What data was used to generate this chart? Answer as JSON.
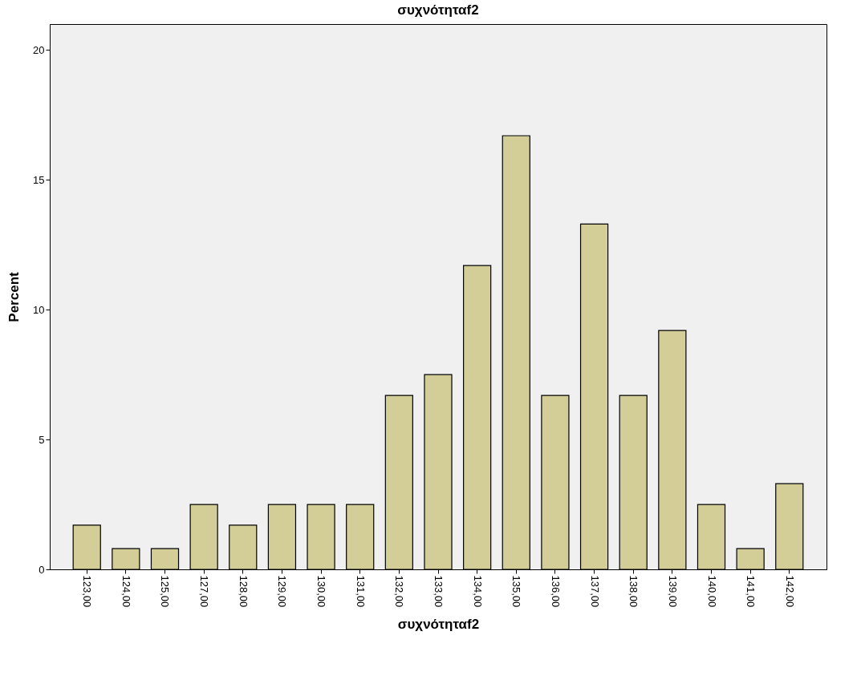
{
  "chart_data": {
    "type": "bar",
    "title": "συχνότηταf2",
    "xlabel": "συχνότηταf2",
    "ylabel": "Percent",
    "categories": [
      "123,00",
      "124,00",
      "125,00",
      "127,00",
      "128,00",
      "129,00",
      "130,00",
      "131,00",
      "132,00",
      "133,00",
      "134,00",
      "135,00",
      "136,00",
      "137,00",
      "138,00",
      "139,00",
      "140,00",
      "141,00",
      "142,00"
    ],
    "values": [
      1.7,
      0.8,
      0.8,
      2.5,
      1.7,
      2.5,
      2.5,
      2.5,
      6.7,
      7.5,
      11.7,
      16.7,
      6.7,
      13.3,
      6.7,
      9.2,
      2.5,
      0.8,
      3.3
    ],
    "color": "#d3ce97",
    "ylim": [
      0,
      21
    ],
    "yticks": [
      0,
      5,
      10,
      15,
      20
    ],
    "grid": false
  }
}
